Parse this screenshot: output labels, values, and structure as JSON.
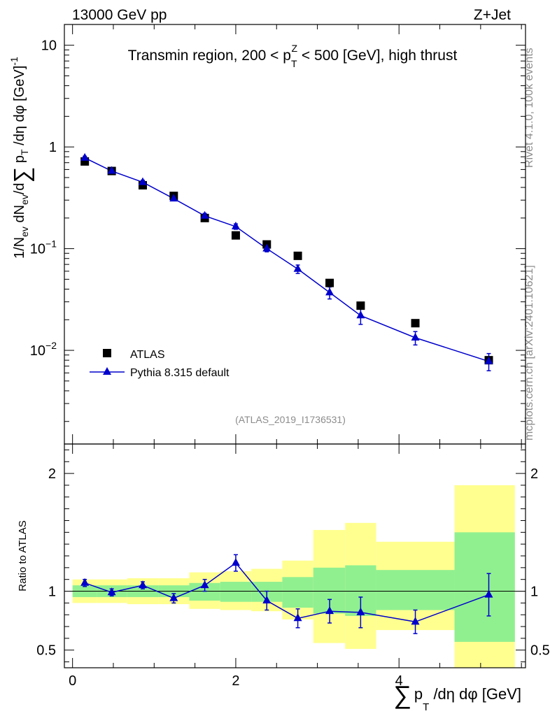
{
  "header": {
    "left_title": "13000 GeV pp",
    "right_title": "Z+Jet"
  },
  "side_labels": {
    "rivet": "Rivet 4.1.0,  100k events",
    "mcplots": "mcplots.cern.ch [arXiv:2401.10621]"
  },
  "analysis_id": "(ATLAS_2019_I1736531)",
  "colors": {
    "data": "#000000",
    "mc": "#0000cc",
    "band_inner": "#90f090",
    "band_outer": "#ffff90",
    "side_text": "#8c8c8c"
  },
  "chart_data": [
    {
      "type": "scatter",
      "title": {
        "main": "Transmin region, 200 < p",
        "sub": "T",
        "sup": "Z",
        "tail": " < 500 [GeV], high thrust"
      },
      "ylabel": "1/N_ev dN_ev/dΣ p_T /dη dφ  [GeV]^-1",
      "yscale": "log",
      "ylim": [
        0.0012,
        16
      ],
      "xlim": [
        -0.1,
        5.55
      ],
      "y_ticks": [
        {
          "value": 10,
          "base": "10",
          "exp": ""
        },
        {
          "value": 1,
          "base": "1",
          "exp": ""
        },
        {
          "value": 0.1,
          "base": "10",
          "exp": "−1"
        },
        {
          "value": 0.01,
          "base": "10",
          "exp": "−2"
        }
      ],
      "legend": {
        "placement": "bottom-left",
        "entries": [
          {
            "label": "ATLAS",
            "marker": "square"
          },
          {
            "label": "Pythia 8.315 default",
            "marker": "triangle-line"
          }
        ]
      },
      "series": [
        {
          "name": "ATLAS",
          "x": [
            0.15,
            0.48,
            0.86,
            1.24,
            1.62,
            2.0,
            2.38,
            2.76,
            3.15,
            3.53,
            4.2,
            5.1
          ],
          "y": [
            0.72,
            0.58,
            0.42,
            0.33,
            0.2,
            0.135,
            0.11,
            0.085,
            0.046,
            0.0275,
            0.0185,
            0.008
          ]
        },
        {
          "name": "Pythia 8.315 default",
          "x": [
            0.15,
            0.48,
            0.86,
            1.24,
            1.62,
            2.0,
            2.38,
            2.76,
            3.15,
            3.53,
            4.2,
            5.1
          ],
          "y": [
            0.78,
            0.58,
            0.45,
            0.31,
            0.21,
            0.165,
            0.1,
            0.063,
            0.037,
            0.022,
            0.0133,
            0.0078
          ],
          "y_err": [
            0.03,
            0.02,
            0.02,
            0.015,
            0.012,
            0.01,
            0.007,
            0.006,
            0.005,
            0.004,
            0.002,
            0.0015
          ]
        }
      ]
    },
    {
      "type": "scatter",
      "ylabel": "Ratio to ATLAS",
      "xlabel_parts": [
        "p",
        "T",
        " /dη dφ [GeV]"
      ],
      "xlim": [
        -0.1,
        5.55
      ],
      "ylim": [
        0.35,
        2.25
      ],
      "x_ticks": [
        0,
        2,
        4
      ],
      "y_ticks": [
        0.5,
        1,
        2
      ],
      "reference_line": 1,
      "bands": [
        {
          "x0": 0.0,
          "x1": 0.3,
          "inner": [
            0.95,
            1.05
          ],
          "outer": [
            0.9,
            1.1
          ]
        },
        {
          "x0": 0.3,
          "x1": 0.67,
          "inner": [
            0.95,
            1.05
          ],
          "outer": [
            0.9,
            1.1
          ]
        },
        {
          "x0": 0.67,
          "x1": 1.05,
          "inner": [
            0.95,
            1.05
          ],
          "outer": [
            0.89,
            1.11
          ]
        },
        {
          "x0": 1.05,
          "x1": 1.43,
          "inner": [
            0.95,
            1.05
          ],
          "outer": [
            0.89,
            1.11
          ]
        },
        {
          "x0": 1.43,
          "x1": 1.81,
          "inner": [
            0.92,
            1.07
          ],
          "outer": [
            0.85,
            1.16
          ]
        },
        {
          "x0": 1.81,
          "x1": 2.19,
          "inner": [
            0.91,
            1.08
          ],
          "outer": [
            0.84,
            1.17
          ]
        },
        {
          "x0": 2.19,
          "x1": 2.57,
          "inner": [
            0.91,
            1.08
          ],
          "outer": [
            0.83,
            1.19
          ]
        },
        {
          "x0": 2.57,
          "x1": 2.95,
          "inner": [
            0.86,
            1.12
          ],
          "outer": [
            0.76,
            1.26
          ]
        },
        {
          "x0": 2.95,
          "x1": 3.34,
          "inner": [
            0.81,
            1.2
          ],
          "outer": [
            0.56,
            1.52
          ]
        },
        {
          "x0": 3.34,
          "x1": 3.72,
          "inner": [
            0.79,
            1.22
          ],
          "outer": [
            0.51,
            1.58
          ]
        },
        {
          "x0": 3.72,
          "x1": 4.68,
          "inner": [
            0.84,
            1.18
          ],
          "outer": [
            0.67,
            1.42
          ]
        },
        {
          "x0": 4.68,
          "x1": 5.42,
          "inner": [
            0.57,
            1.5
          ],
          "outer": [
            0.32,
            1.9
          ]
        }
      ],
      "series": [
        {
          "name": "Pythia 8.315 default / ATLAS",
          "x": [
            0.15,
            0.48,
            0.86,
            1.24,
            1.62,
            2.0,
            2.38,
            2.76,
            3.15,
            3.53,
            4.2,
            5.1
          ],
          "y": [
            1.07,
            0.99,
            1.05,
            0.94,
            1.05,
            1.24,
            0.92,
            0.77,
            0.83,
            0.82,
            0.74,
            0.97
          ],
          "y_err": [
            0.03,
            0.03,
            0.03,
            0.04,
            0.05,
            0.07,
            0.08,
            0.08,
            0.1,
            0.13,
            0.1,
            0.18
          ]
        }
      ]
    }
  ]
}
